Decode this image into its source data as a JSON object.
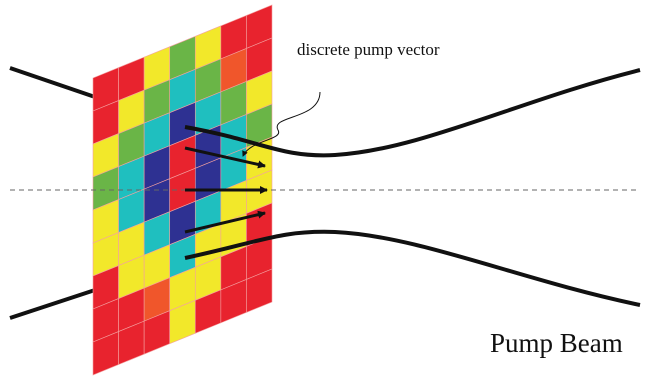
{
  "annotation": "discrete pump vector",
  "beam_label": "Pump Beam"
}
